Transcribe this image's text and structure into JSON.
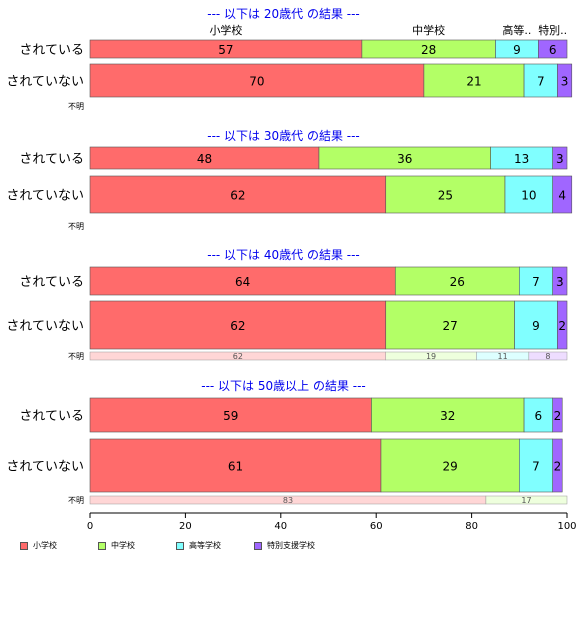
{
  "chart_data": {
    "type": "bar",
    "orientation": "horizontal-stacked-100",
    "xlim": [
      0,
      100
    ],
    "xticks": [
      "0",
      "20",
      "40",
      "60",
      "80",
      "100"
    ],
    "category_header": [
      "小学校",
      "中学校",
      "高等..",
      "特別.."
    ],
    "legend": [
      {
        "name": "小学校",
        "color": "#ff6b6b"
      },
      {
        "name": "中学校",
        "color": "#b3ff66"
      },
      {
        "name": "高等学校",
        "color": "#80ffff"
      },
      {
        "name": "特別支援学校",
        "color": "#a066ff"
      }
    ],
    "panels": [
      {
        "title": "--- 以下は 20歳代 の結果 ---",
        "rows": [
          {
            "label": "されている",
            "values": [
              57,
              28,
              9,
              6
            ]
          },
          {
            "label": "されていない",
            "values": [
              70,
              21,
              7,
              3
            ]
          }
        ],
        "unknown": {
          "label": "不明",
          "values": []
        }
      },
      {
        "title": "--- 以下は 30歳代 の結果 ---",
        "rows": [
          {
            "label": "されている",
            "values": [
              48,
              36,
              13,
              3
            ]
          },
          {
            "label": "されていない",
            "values": [
              62,
              25,
              10,
              4
            ]
          }
        ],
        "unknown": {
          "label": "不明",
          "values": []
        }
      },
      {
        "title": "--- 以下は 40歳代 の結果 ---",
        "rows": [
          {
            "label": "されている",
            "values": [
              64,
              26,
              7,
              3
            ]
          },
          {
            "label": "されていない",
            "values": [
              62,
              27,
              9,
              2
            ]
          }
        ],
        "unknown": {
          "label": "不明",
          "values": [
            62,
            19,
            11,
            8
          ]
        }
      },
      {
        "title": "--- 以下は 50歳以上 の結果 ---",
        "rows": [
          {
            "label": "されている",
            "values": [
              59,
              32,
              6,
              2
            ]
          },
          {
            "label": "されていない",
            "values": [
              61,
              29,
              7,
              2
            ]
          }
        ],
        "unknown": {
          "label": "不明",
          "values": [
            83,
            17
          ]
        }
      }
    ]
  }
}
